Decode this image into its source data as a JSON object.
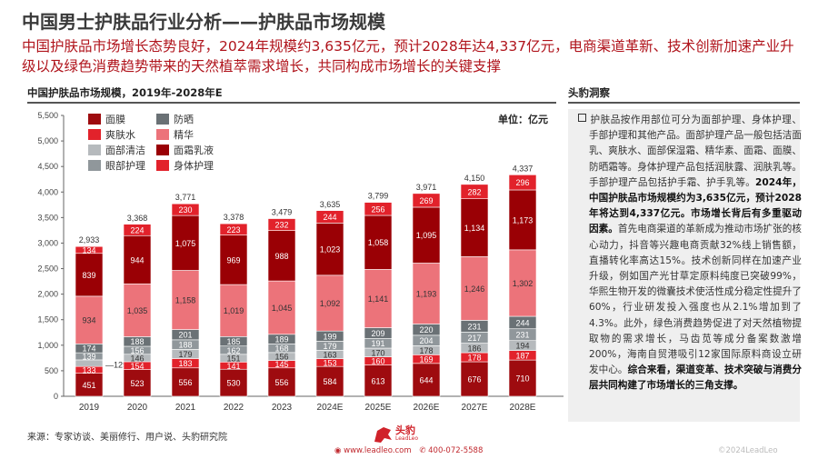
{
  "header": {
    "title": "中国男士护肤品行业分析——护肤品市场规模",
    "subtitle": "中国护肤品市场增长态势良好，2024年规模约3,635亿元，预计2028年达4,337亿元，电商渠道革新、技术创新加速产业升级以及绿色消费趋势带来的天然植萃需求增长，共同构成市场增长的关键支撑"
  },
  "chart_section": {
    "title": "中国护肤品市场规模，2019年-2028年E",
    "unit": "单位：亿元"
  },
  "chart_data": {
    "type": "bar",
    "stacked": true,
    "title": "中国护肤品市场规模，2019年-2028年E",
    "ylabel": "单位：亿元",
    "ylim": [
      0,
      5500
    ],
    "yticks": [
      0,
      500,
      1000,
      1500,
      2000,
      2500,
      3000,
      3500,
      4000,
      4500,
      5000,
      5500
    ],
    "ytick_labels": [
      "0",
      "500",
      "1,000",
      "1,500",
      "2,000",
      "2,500",
      "3,000",
      "3,500",
      "4,000",
      "4,500",
      "5,000",
      "5,500"
    ],
    "categories": [
      "2019",
      "2020",
      "2021",
      "2022",
      "2023",
      "2024E",
      "2025E",
      "2026E",
      "2027E",
      "2028E"
    ],
    "legend_position": "top-left",
    "series": [
      {
        "name": "面膜",
        "color": "#9e0b0f",
        "values": [
          451,
          523,
          556,
          530,
          556,
          584,
          613,
          644,
          676,
          710
        ]
      },
      {
        "name": "爽肤水",
        "color": "#e2222b",
        "values": [
          133,
          154,
          183,
          141,
          145,
          153,
          160,
          169,
          178,
          187
        ]
      },
      {
        "name": "面部清洁",
        "color": "#b6babd",
        "values": [
          129,
          146,
          179,
          151,
          156,
          163,
          170,
          178,
          186,
          194
        ]
      },
      {
        "name": "眼部护理",
        "color": "#90979b",
        "values": [
          139,
          156,
          188,
          162,
          168,
          179,
          191,
          204,
          217,
          231
        ]
      },
      {
        "name": "防晒",
        "color": "#6a7175",
        "values": [
          174,
          188,
          201,
          185,
          189,
          199,
          209,
          220,
          231,
          244
        ]
      },
      {
        "name": "精华",
        "color": "#ec737a",
        "values": [
          934,
          1035,
          1158,
          1019,
          1045,
          1092,
          1141,
          1193,
          1246,
          1302
        ]
      },
      {
        "name": "面霜乳液",
        "color": "#9a0005",
        "values": [
          839,
          944,
          1075,
          969,
          988,
          1023,
          1058,
          1095,
          1134,
          1173
        ]
      },
      {
        "name": "身体护理",
        "color": "#e2222b",
        "values": [
          134,
          224,
          230,
          223,
          232,
          244,
          256,
          269,
          282,
          296
        ]
      }
    ],
    "totals": [
      2933,
      3368,
      3771,
      3378,
      3479,
      3635,
      3799,
      3971,
      4150,
      4337
    ],
    "total_labels": [
      "2,933",
      "3,368",
      "3,771",
      "3,378",
      "3,479",
      "3,635",
      "3,799",
      "3,971",
      "4,150",
      "4,337"
    ],
    "legend_order": [
      0,
      4,
      1,
      5,
      2,
      6,
      3,
      7
    ]
  },
  "insight": {
    "title": "头豹洞察",
    "p1": "护肤品按作用部位可分为面部护理、身体护理、手部护理和其他产品。面部护理产品一般包括洁面乳、爽肤水、面部保湿霜、精华素、面霜、面膜、防晒霜等。身体护理产品包括润肤露、润肤乳等。手部护理产品包括护手霜、护手乳等。",
    "b1": "2024年，中国护肤品市场规模约为3,635亿元，预计2028年将达到4,337亿元。市场增长背后有多重驱动因素。",
    "p2": "首先电商渠道的革新成为推动市场扩张的核心动力，抖音等兴趣电商贡献32%线上销售额，直播转化率高达15%。技术创新同样在加速产业升级，例如国产光甘草定原料纯度已突破99%，华熙生物开发的微囊技术使活性成分稳定性提升了60%，行业研发投入强度也从2.1%增加到了4.3%。此外，绿色消费趋势促进了对天然植物提取物的需求增长，马齿苋等成分备案数激增200%，海南自贸港吸引12家国际原料商设立研发中心。",
    "b2": "综合来看，渠道变革、技术突破与消费分层共同构建了市场增长的三角支撑。"
  },
  "footer": {
    "source": "来源：专家访谈、美丽修行、用户说、头豹研究院",
    "logo_text": "头豹",
    "logo_sub": "LeadLeo",
    "website": "www.leadleo.com",
    "phone": "400-072-5588",
    "copyright": "©2024LeadLeo"
  }
}
